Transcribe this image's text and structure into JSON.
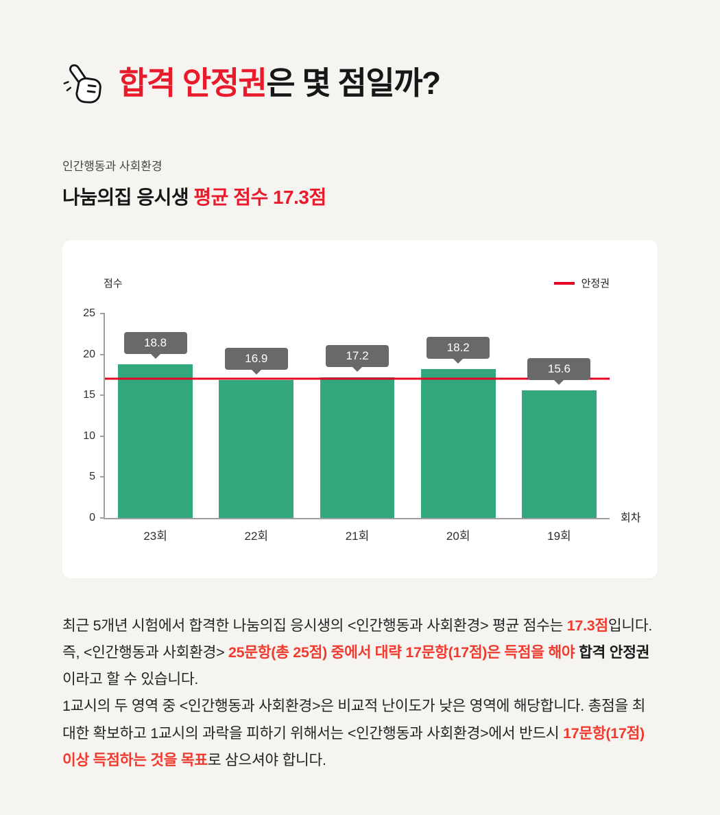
{
  "colors": {
    "page_bg": "#f6f4f0",
    "card_bg": "#ffffff",
    "title_red": "#e81a2b",
    "highlight_red": "#f03a2e",
    "text_dark": "#171717",
    "bar_green": "#33a87d",
    "tooltip_gray": "#696969",
    "axis_gray": "#9e9e9e",
    "ref_line_red": "#e60023"
  },
  "header": {
    "icon": "pointing-hand-icon",
    "title_segments": [
      {
        "text": "합격 안정권",
        "style": "red"
      },
      {
        "text": "은 몇 점일까?",
        "style": "dark"
      }
    ]
  },
  "section": {
    "category": "인간행동과 사회환경",
    "title_segments": [
      {
        "text": "나눔의집 응시생 ",
        "style": "dark"
      },
      {
        "text": "평균 점수 17.3점",
        "style": "red"
      }
    ]
  },
  "chart_data": {
    "type": "bar",
    "title": "나눔의집 응시생 평균 점수 17.3점",
    "categories": [
      "23회",
      "22회",
      "21회",
      "20회",
      "19회"
    ],
    "values": [
      18.8,
      16.9,
      17.2,
      18.2,
      15.6
    ],
    "ylabel": "점수",
    "xlabel": "회차",
    "ylim": [
      0,
      25
    ],
    "yticks": [
      0,
      5,
      10,
      15,
      20,
      25
    ],
    "grid": false,
    "bar_color": "#33a87d",
    "legend": {
      "label": "안정권",
      "position": "top-right"
    },
    "reference_line": {
      "value": 17,
      "label": "안정권",
      "color": "#e60023"
    }
  },
  "body": {
    "paragraphs": [
      [
        {
          "text": "최근 5개년 시험에서 합격한 나눔의집 응시생의 <인간행동과 사회환경> 평균 점수는 ",
          "style": "normal"
        },
        {
          "text": "17.3점",
          "style": "red-bold"
        },
        {
          "text": "입니다. 즉, <인간행동과 사회환경> ",
          "style": "normal"
        },
        {
          "text": "25문항(총 25점) 중에서 대략 17문항(17점)은 득점을 해야 ",
          "style": "red-bold"
        },
        {
          "text": "합격 안정권",
          "style": "bold"
        },
        {
          "text": "이라고 할 수 있습니다.",
          "style": "normal"
        }
      ],
      [
        {
          "text": "1교시의 두 영역 중 <인간행동과 사회환경>은 비교적 난이도가 낮은 영역에 해당합니다. 총점을 최대한 확보하고 1교시의 과락을 피하기 위해서는 <인간행동과 사회환경>에서 반드시 ",
          "style": "normal"
        },
        {
          "text": "17문항(17점) 이상 득점하는 것을 목표",
          "style": "red-bold"
        },
        {
          "text": "로 삼으셔야 합니다.",
          "style": "normal"
        }
      ]
    ]
  }
}
